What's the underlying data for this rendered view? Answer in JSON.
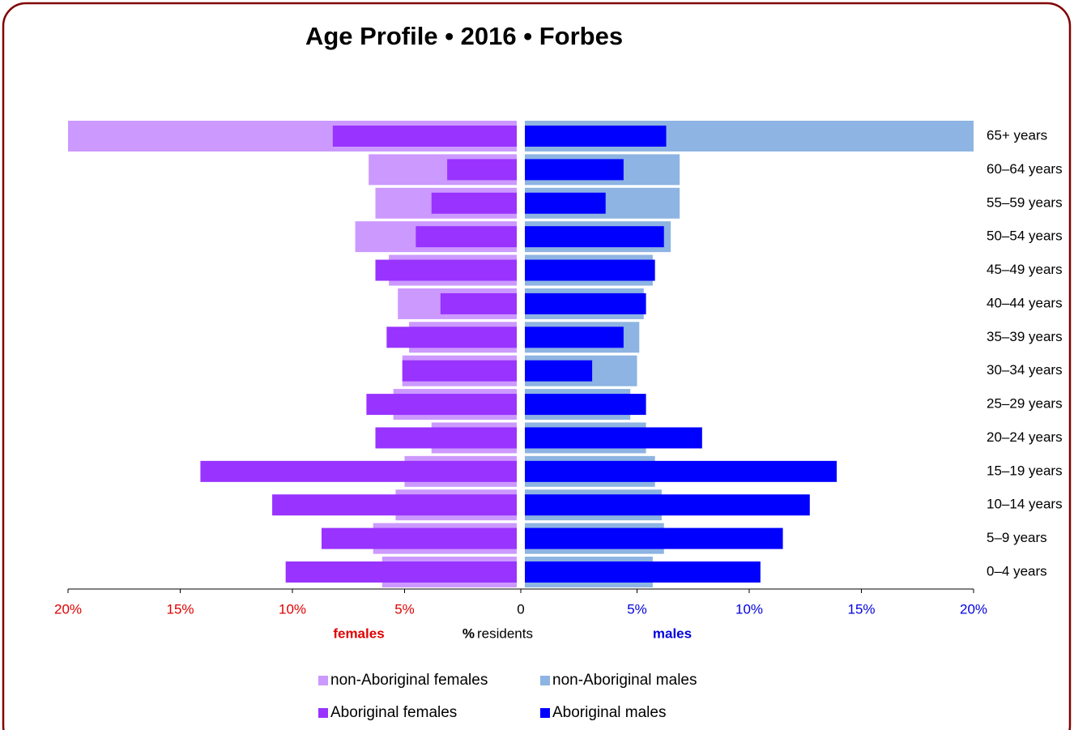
{
  "chart_data": {
    "type": "pyramid",
    "title": "Age Profile • 2016 • Forbes",
    "left_label": "females",
    "right_label": "males",
    "x_label_bold": "%",
    "x_label": "residents",
    "left_color": "#e00000",
    "right_color": "#0000dd",
    "categories": [
      "65+ years",
      "60–64 years",
      "55–59 years",
      "50–54 years",
      "45–49 years",
      "40–44 years",
      "35–39 years",
      "30–34 years",
      "25–29 years",
      "20–24 years",
      "15–19 years",
      "10–14 years",
      "5–9 years",
      "0–4 years"
    ],
    "series": [
      {
        "name": "non-Aboriginal females",
        "color": "#cc99ff",
        "side": "left",
        "width": "wide",
        "values": [
          20.0,
          6.6,
          6.3,
          7.2,
          5.7,
          5.3,
          4.8,
          5.1,
          5.5,
          3.8,
          5.0,
          5.4,
          6.4,
          6.0
        ]
      },
      {
        "name": "Aboriginal females",
        "color": "#9933ff",
        "side": "left",
        "width": "narrow",
        "values": [
          8.2,
          3.1,
          3.8,
          4.5,
          6.3,
          3.4,
          5.8,
          5.1,
          6.7,
          6.3,
          14.1,
          10.9,
          8.7,
          10.3
        ]
      },
      {
        "name": "non-Aboriginal males",
        "color": "#8db4e2",
        "side": "right",
        "width": "wide",
        "values": [
          20.0,
          6.9,
          6.9,
          6.5,
          5.7,
          5.3,
          5.1,
          5.0,
          4.7,
          5.4,
          5.8,
          6.1,
          6.2,
          5.7
        ]
      },
      {
        "name": "Aboriginal males",
        "color": "#0000ff",
        "side": "right",
        "width": "narrow",
        "values": [
          6.3,
          4.4,
          3.6,
          6.2,
          5.8,
          5.4,
          4.4,
          3.0,
          5.4,
          7.9,
          13.9,
          12.7,
          11.5,
          10.5
        ]
      }
    ],
    "xlim": [
      -20,
      20
    ],
    "xticks": [
      {
        "value": -20,
        "label": "20%"
      },
      {
        "value": -15,
        "label": "15%"
      },
      {
        "value": -10,
        "label": "10%"
      },
      {
        "value": -5,
        "label": "5%"
      },
      0,
      {
        "value": 5,
        "label": "5%"
      },
      {
        "value": 10,
        "label": "10%"
      },
      {
        "value": 15,
        "label": "15%"
      },
      {
        "value": 20,
        "label": "20%"
      }
    ]
  }
}
